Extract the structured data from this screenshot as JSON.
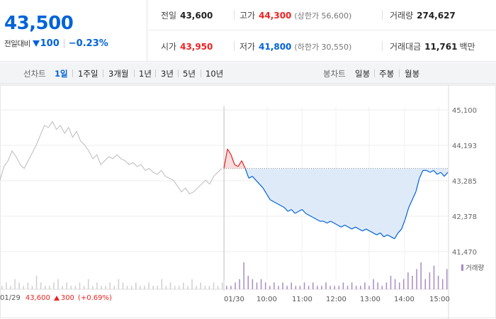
{
  "quote": {
    "price": "43,500",
    "change_label": "전일대비",
    "change": "100",
    "percent": "−0.23%",
    "colors": {
      "up": "#e22222",
      "down": "#0063d8"
    }
  },
  "stats": {
    "prev_close": {
      "label": "전일",
      "value": "43,600"
    },
    "high": {
      "label": "고가",
      "value": "44,300",
      "extra": "(상한가 56,600)"
    },
    "volume": {
      "label": "거래량",
      "value": "274,627"
    },
    "open": {
      "label": "시가",
      "value": "43,950"
    },
    "low": {
      "label": "저가",
      "value": "41,800",
      "extra": "(하한가 30,550)"
    },
    "amount": {
      "label": "거래대금",
      "value": "11,761",
      "unit": "백만"
    }
  },
  "tabs": {
    "line_label": "선차트",
    "line_tabs": [
      "1일",
      "1주일",
      "3개월",
      "1년",
      "3년",
      "5년",
      "10년"
    ],
    "active": "1일",
    "candle_label": "봉차트",
    "candle_tabs": [
      "일봉",
      "주봉",
      "월봉"
    ]
  },
  "footer": {
    "prev_date": "01/29",
    "prev_price": "43,600",
    "prev_change": "300",
    "prev_percent": "(+0.69%)"
  },
  "chart_data": {
    "type": "line",
    "y_ticks": [
      "45,100",
      "44,193",
      "43,285",
      "42,378",
      "41,470"
    ],
    "ylim": [
      41470,
      45100
    ],
    "x_labels": [
      "01/30",
      "10:00",
      "11:00",
      "12:00",
      "13:00",
      "14:00",
      "15:00"
    ],
    "reference_price": 43600,
    "legend": "거래량",
    "series": [
      {
        "name": "01/29",
        "color": "#bbbbbb",
        "values": [
          43300,
          43650,
          43800,
          44050,
          43900,
          43700,
          43600,
          43800,
          44000,
          44200,
          44450,
          44700,
          44650,
          44800,
          44600,
          44700,
          44500,
          44650,
          44400,
          44550,
          44300,
          44200,
          44050,
          43850,
          43950,
          43700,
          43800,
          43900,
          43850,
          43950,
          43850,
          43800,
          43700,
          43750,
          43650,
          43700,
          43550,
          43600,
          43500,
          43450,
          43550,
          43400,
          43350,
          43300,
          43150,
          43000,
          43100,
          42950,
          43000,
          43100,
          43200,
          43300,
          43200,
          43400,
          43500,
          43600
        ]
      },
      {
        "name": "01/30",
        "color_up": "#e22222",
        "color_down": "#0063d8",
        "values": [
          43600,
          44100,
          43950,
          43700,
          43650,
          43800,
          43600,
          43350,
          43400,
          43300,
          43200,
          43100,
          42950,
          42800,
          42750,
          42700,
          42650,
          42600,
          42500,
          42550,
          42450,
          42500,
          42550,
          42450,
          42400,
          42350,
          42300,
          42250,
          42250,
          42200,
          42250,
          42200,
          42150,
          42100,
          42150,
          42100,
          42050,
          42100,
          42050,
          42000,
          42050,
          42000,
          41950,
          41900,
          41950,
          41850,
          41900,
          41850,
          41800,
          41950,
          42050,
          42300,
          42600,
          42800,
          43000,
          43350,
          43550,
          43550,
          43500,
          43550,
          43450,
          43500,
          43400,
          43500
        ]
      }
    ],
    "volume_bars": [
      1,
      2,
      1,
      3,
      2,
      1,
      2,
      1,
      4,
      2,
      1,
      1,
      2,
      3,
      1,
      2,
      1,
      1,
      2,
      1,
      3,
      1,
      2,
      1,
      1,
      2,
      1,
      3,
      2,
      1,
      1,
      2,
      1,
      1,
      2,
      1,
      1,
      3,
      1,
      2,
      1,
      1,
      2,
      1,
      3,
      1,
      2,
      1,
      1,
      2,
      1,
      2,
      1,
      1,
      2,
      3,
      8,
      4,
      3,
      2,
      3,
      2,
      1,
      2,
      1,
      2,
      1,
      2,
      1,
      1,
      2,
      1,
      2,
      1,
      1,
      2,
      1,
      1,
      1,
      2,
      1,
      2,
      1,
      1,
      2,
      1,
      3,
      2,
      1,
      2,
      4,
      3,
      2,
      3,
      5,
      4,
      6,
      8,
      3,
      5,
      7,
      4,
      3,
      6
    ]
  }
}
